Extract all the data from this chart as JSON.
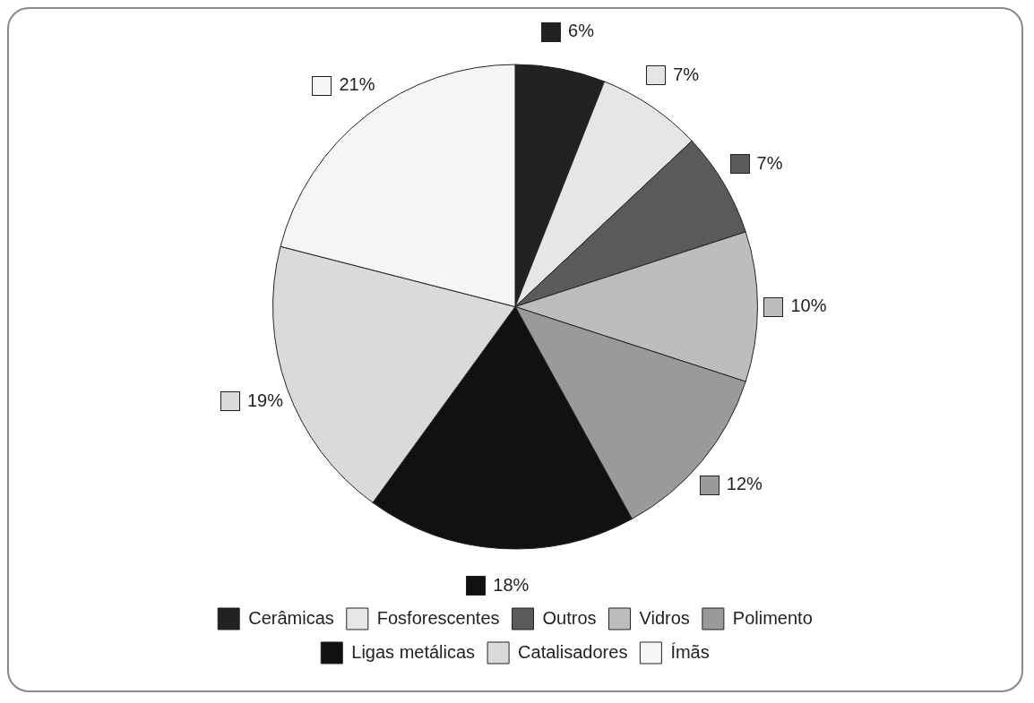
{
  "chart_data": {
    "type": "pie",
    "categories": [
      "Cerâmicas",
      "Fosforescentes",
      "Outros",
      "Vidros",
      "Polimento",
      "Ligas metálicas",
      "Catalisadores",
      "Ímãs"
    ],
    "values": [
      6,
      7,
      7,
      10,
      12,
      18,
      19,
      21
    ],
    "colors": [
      "#222222",
      "#e6e6e6",
      "#5a5a5a",
      "#bdbdbd",
      "#9a9a9a",
      "#111111",
      "#dadada",
      "#f5f5f5"
    ],
    "value_labels": [
      "6%",
      "7%",
      "7%",
      "10%",
      "12%",
      "18%",
      "19%",
      "21%"
    ],
    "legend": "bottom"
  }
}
